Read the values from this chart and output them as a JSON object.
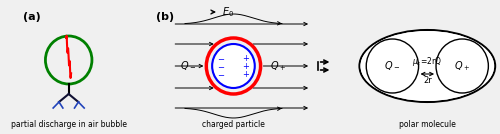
{
  "bg_color": "#f0f0f0",
  "label_a": "(a)",
  "label_b": "(b)",
  "caption_a": "partial discharge in air bubble",
  "caption_b": "charged particle",
  "caption_c": "polar molecule",
  "E0_label": "$E_0$",
  "Q_minus": "$Q_-$",
  "Q_plus": "$Q_+$",
  "Q_minus2": "$Q_-$",
  "Q_plus2": "$Q_+$",
  "dipole_label": "2r",
  "moment_label": "$\\mu_c$=2rQ"
}
